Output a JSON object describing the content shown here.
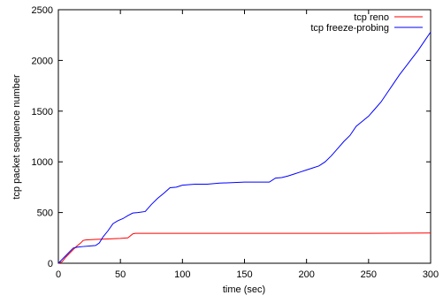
{
  "chart_data": {
    "type": "line",
    "title": "",
    "xlabel": "time (sec)",
    "ylabel": "tcp packet sequence number",
    "xlim": [
      0,
      300
    ],
    "ylim": [
      0,
      2500
    ],
    "xticks": [
      0,
      50,
      100,
      150,
      200,
      250,
      300
    ],
    "yticks": [
      0,
      500,
      1000,
      1500,
      2000,
      2500
    ],
    "grid": false,
    "legend_position": "top-right",
    "series": [
      {
        "name": "tcp reno",
        "color": "#ff0000",
        "x": [
          0,
          3,
          6,
          10,
          14,
          18,
          20,
          22,
          30,
          40,
          50,
          56,
          58,
          60,
          62,
          70,
          100,
          150,
          200,
          250,
          300
        ],
        "y": [
          0,
          15,
          60,
          110,
          160,
          200,
          225,
          230,
          235,
          240,
          245,
          250,
          270,
          290,
          295,
          295,
          295,
          295,
          295,
          295,
          298
        ]
      },
      {
        "name": "tcp freeze-probing",
        "color": "#0000ff",
        "x": [
          0,
          4,
          8,
          12,
          16,
          20,
          25,
          30,
          33,
          36,
          40,
          44,
          48,
          52,
          56,
          60,
          64,
          70,
          75,
          80,
          85,
          90,
          95,
          100,
          110,
          120,
          130,
          140,
          150,
          160,
          170,
          175,
          180,
          185,
          190,
          195,
          200,
          205,
          210,
          215,
          220,
          225,
          230,
          235,
          240,
          245,
          250,
          255,
          260,
          265,
          270,
          275,
          280,
          285,
          290,
          295,
          300
        ],
        "y": [
          0,
          50,
          100,
          150,
          160,
          165,
          170,
          175,
          200,
          260,
          320,
          390,
          420,
          440,
          470,
          495,
          500,
          510,
          580,
          640,
          690,
          745,
          750,
          770,
          780,
          780,
          790,
          795,
          800,
          800,
          800,
          840,
          845,
          860,
          880,
          900,
          920,
          940,
          960,
          1000,
          1060,
          1130,
          1200,
          1260,
          1350,
          1400,
          1450,
          1520,
          1590,
          1680,
          1770,
          1860,
          1940,
          2020,
          2100,
          2190,
          2280
        ]
      }
    ]
  }
}
